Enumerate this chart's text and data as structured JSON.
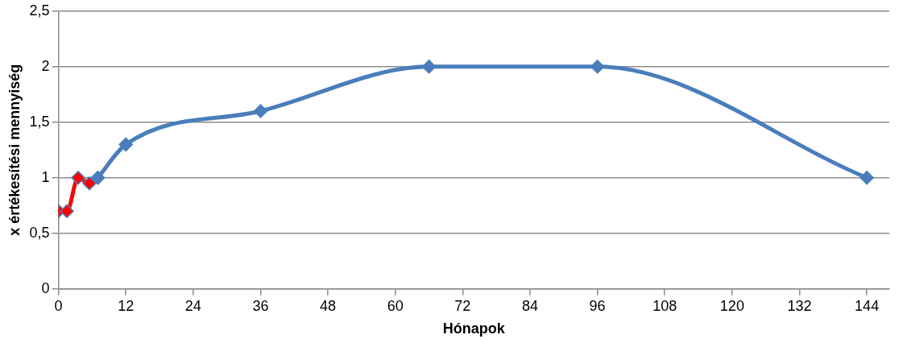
{
  "chart_data": {
    "type": "line",
    "xlabel": "Hónapok",
    "ylabel": "x értékesítési mennyiség",
    "xlim": [
      0,
      148
    ],
    "xticks": [
      0,
      12,
      24,
      36,
      48,
      60,
      72,
      84,
      96,
      108,
      120,
      132,
      144
    ],
    "ylim": [
      0,
      2.5
    ],
    "yticks": [
      0,
      {
        "value": 0.5,
        "label": "0,5"
      },
      1,
      {
        "value": 1.5,
        "label": "1,5"
      },
      2,
      {
        "value": 2.5,
        "label": "2,5"
      }
    ],
    "grid": "y",
    "legend": false,
    "marker": "diamond",
    "line_style": "solid",
    "series": [
      {
        "color": "#4a7ebb",
        "x": [
          7,
          12,
          36,
          66,
          96,
          144
        ],
        "values": [
          1,
          1.3,
          1.6,
          2,
          2,
          1
        ]
      },
      {
        "color": "#ff0000",
        "x": [
          0,
          1.5,
          3.5,
          5.5,
          7
        ],
        "values": [
          0.7,
          0.7,
          1,
          0.95,
          1
        ]
      }
    ]
  }
}
